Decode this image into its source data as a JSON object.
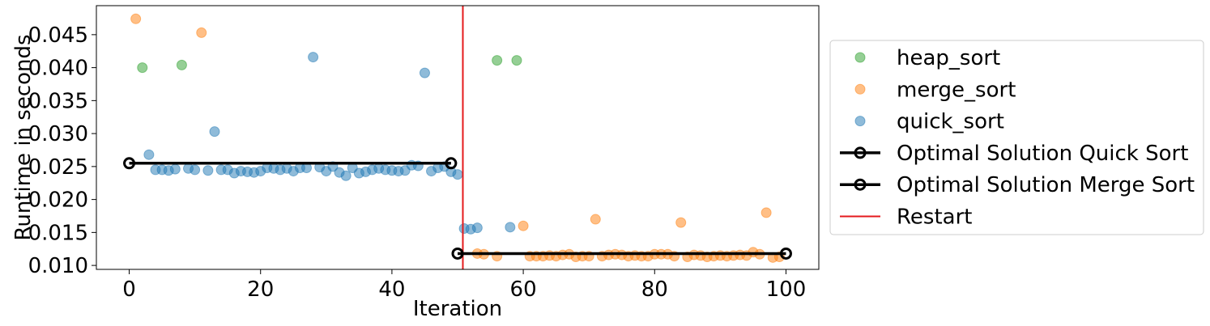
{
  "chart_data": {
    "type": "scatter",
    "title": "",
    "xlabel": "Iteration",
    "ylabel": "Runtime in seconds",
    "xlim": [
      -5,
      105
    ],
    "ylim": [
      0.0094,
      0.0494
    ],
    "xticks": [
      0,
      20,
      40,
      60,
      80,
      100
    ],
    "yticks": [
      0.01,
      0.015,
      0.02,
      0.025,
      0.03,
      0.035,
      0.04,
      0.045
    ],
    "ytick_labels": [
      "0.010",
      "0.015",
      "0.020",
      "0.025",
      "0.030",
      "0.035",
      "0.040",
      "0.045"
    ],
    "grid": false,
    "legend_position": "outside-right",
    "series": [
      {
        "name": "heap_sort",
        "color": "#2ca02c",
        "points": [
          [
            2,
            0.04
          ],
          [
            8,
            0.0404
          ],
          [
            56,
            0.0411
          ],
          [
            59,
            0.0411
          ]
        ]
      },
      {
        "name": "merge_sort",
        "color": "#ff7f0e",
        "points": [
          [
            1,
            0.0474
          ],
          [
            11,
            0.0453
          ],
          [
            53,
            0.0118
          ],
          [
            54,
            0.0117
          ],
          [
            56,
            0.0114
          ],
          [
            60,
            0.016
          ],
          [
            61,
            0.0114
          ],
          [
            62,
            0.0114
          ],
          [
            63,
            0.0114
          ],
          [
            64,
            0.0115
          ],
          [
            65,
            0.0114
          ],
          [
            66,
            0.0116
          ],
          [
            67,
            0.0117
          ],
          [
            68,
            0.0113
          ],
          [
            69,
            0.0114
          ],
          [
            70,
            0.0114
          ],
          [
            71,
            0.017
          ],
          [
            72,
            0.0114
          ],
          [
            73,
            0.0116
          ],
          [
            74,
            0.0117
          ],
          [
            75,
            0.0116
          ],
          [
            76,
            0.0114
          ],
          [
            77,
            0.0115
          ],
          [
            78,
            0.0114
          ],
          [
            79,
            0.0114
          ],
          [
            80,
            0.0117
          ],
          [
            81,
            0.0117
          ],
          [
            82,
            0.0117
          ],
          [
            83,
            0.0114
          ],
          [
            84,
            0.0165
          ],
          [
            85,
            0.0113
          ],
          [
            86,
            0.0116
          ],
          [
            87,
            0.0115
          ],
          [
            88,
            0.0113
          ],
          [
            89,
            0.0114
          ],
          [
            90,
            0.0115
          ],
          [
            91,
            0.0114
          ],
          [
            92,
            0.0115
          ],
          [
            93,
            0.0116
          ],
          [
            94,
            0.0115
          ],
          [
            95,
            0.012
          ],
          [
            96,
            0.0117
          ],
          [
            97,
            0.018
          ],
          [
            98,
            0.0112
          ],
          [
            99,
            0.0113
          ]
        ]
      },
      {
        "name": "quick_sort",
        "color": "#1f77b4",
        "points": [
          [
            3,
            0.0268
          ],
          [
            4,
            0.0245
          ],
          [
            5,
            0.0245
          ],
          [
            6,
            0.0244
          ],
          [
            7,
            0.0246
          ],
          [
            9,
            0.0247
          ],
          [
            10,
            0.0245
          ],
          [
            12,
            0.0244
          ],
          [
            13,
            0.0303
          ],
          [
            14,
            0.0245
          ],
          [
            15,
            0.0245
          ],
          [
            16,
            0.024
          ],
          [
            17,
            0.0243
          ],
          [
            18,
            0.0242
          ],
          [
            19,
            0.0241
          ],
          [
            20,
            0.0243
          ],
          [
            21,
            0.0248
          ],
          [
            22,
            0.0247
          ],
          [
            23,
            0.0245
          ],
          [
            24,
            0.0247
          ],
          [
            25,
            0.0243
          ],
          [
            26,
            0.0248
          ],
          [
            27,
            0.0248
          ],
          [
            28,
            0.0416
          ],
          [
            29,
            0.0249
          ],
          [
            30,
            0.0243
          ],
          [
            31,
            0.025
          ],
          [
            32,
            0.0241
          ],
          [
            33,
            0.0236
          ],
          [
            34,
            0.0248
          ],
          [
            35,
            0.024
          ],
          [
            36,
            0.0242
          ],
          [
            37,
            0.0245
          ],
          [
            38,
            0.0247
          ],
          [
            39,
            0.0245
          ],
          [
            40,
            0.0244
          ],
          [
            41,
            0.0243
          ],
          [
            42,
            0.0244
          ],
          [
            43,
            0.0252
          ],
          [
            44,
            0.0251
          ],
          [
            45,
            0.0392
          ],
          [
            46,
            0.0243
          ],
          [
            47,
            0.0248
          ],
          [
            48,
            0.025
          ],
          [
            49,
            0.0242
          ],
          [
            50,
            0.0238
          ],
          [
            51,
            0.0156
          ],
          [
            52,
            0.0155
          ],
          [
            53,
            0.0157
          ],
          [
            58,
            0.0158
          ]
        ]
      },
      {
        "name": "Optimal Solution Quick Sort",
        "color": "#000000",
        "points": [
          [
            0,
            0.0255
          ],
          [
            49,
            0.0255
          ]
        ]
      },
      {
        "name": "Optimal Solution Merge Sort",
        "color": "#000000",
        "points": [
          [
            50,
            0.0118
          ],
          [
            100,
            0.0118
          ]
        ]
      },
      {
        "name": "Restart",
        "color": "#e41a1c",
        "x": 50.8
      }
    ]
  }
}
